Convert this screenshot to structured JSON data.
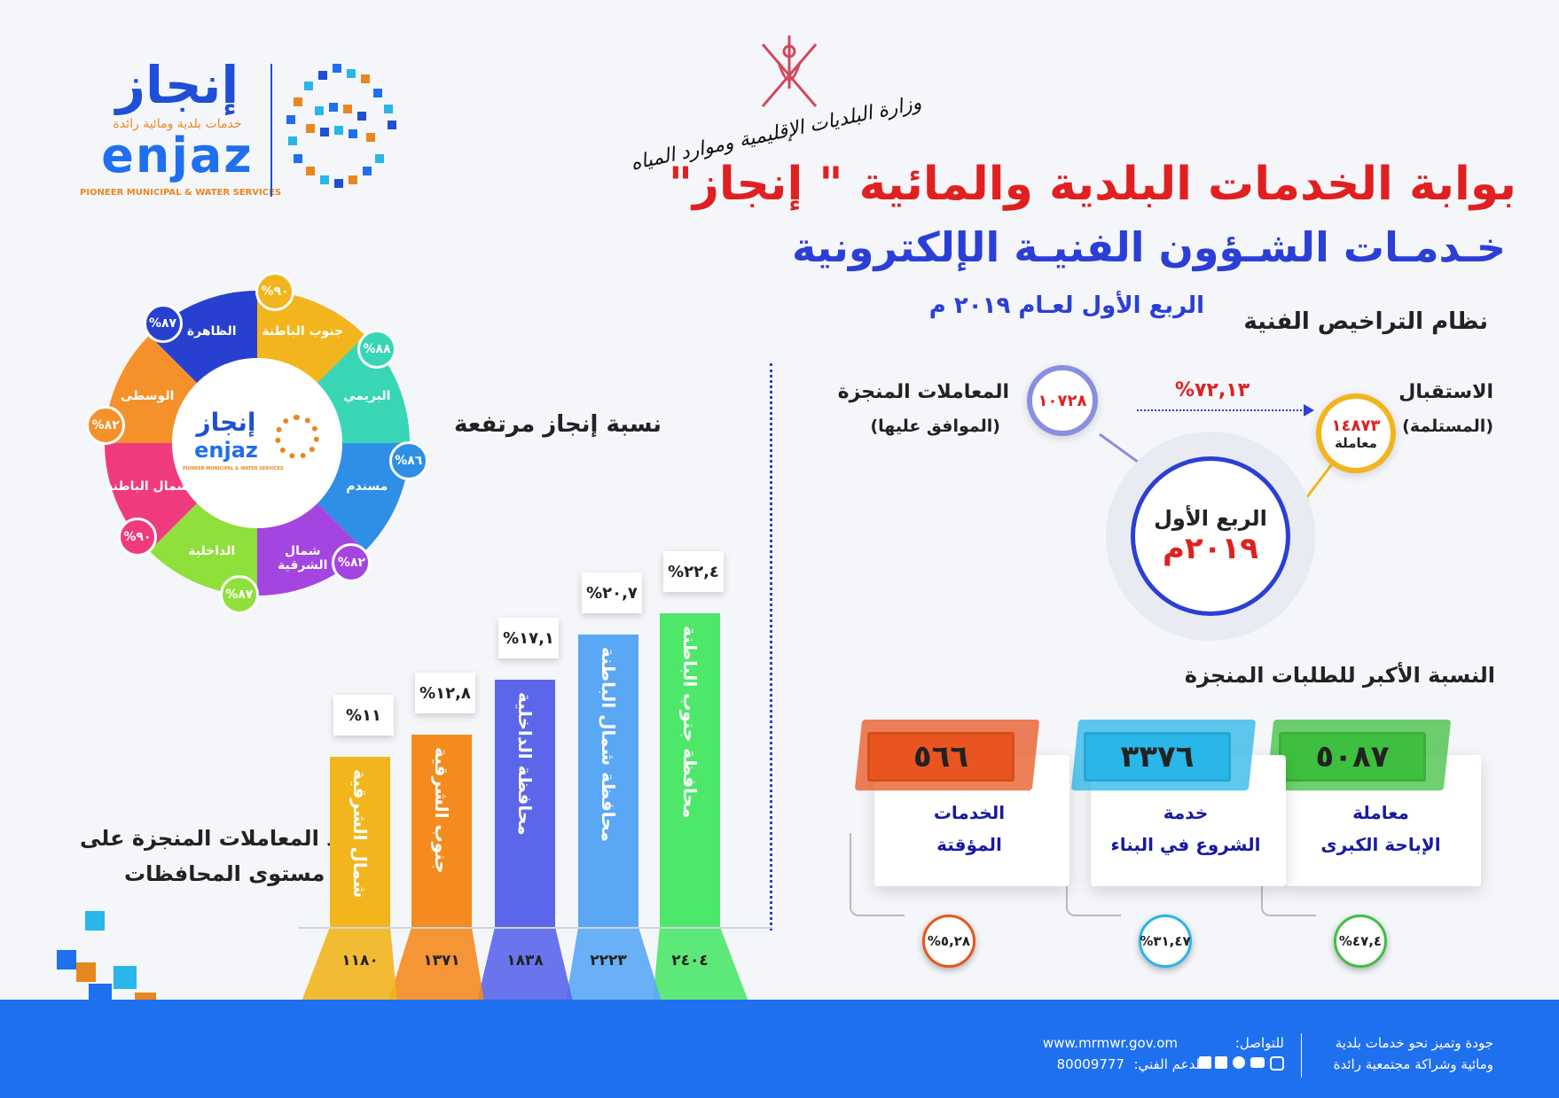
{
  "header": {
    "title": "بوابة الخدمات البلدية والمائية \" إنجاز\"",
    "subtitle": "خـدمـات الشـؤون الفنيـة الإلكترونية",
    "quarter": "الربع الأول لعـام ٢٠١٩ م",
    "ministry": "وزارة البلديات الإقليمية وموارد المياه"
  },
  "logo": {
    "arabic": "إنجاز",
    "tagline_ar": "خدمات بلدية ومائية رائدة",
    "latin": "enjaz",
    "tagline_en": "PIONEER MUNICIPAL & WATER SERVICES"
  },
  "licenses": {
    "title": "نظام التراخيص الفنية",
    "received_label": "الاستقبال",
    "received_sub": "(المستلمة)",
    "received_value": "١٤٨٧٣",
    "received_unit": "معاملة",
    "completed_label": "المعاملات المنجزة",
    "completed_sub": "(الموافق عليها)",
    "completed_value": "١٠٧٢٨",
    "ratio": "%٧٢,١٣",
    "center_line1": "الربع الأول",
    "center_line2": "٢٠١٩م"
  },
  "top_requests": {
    "title": "النسبة الأكبر للطلبات المنجزة",
    "cards": [
      {
        "value": "٥٠٨٧",
        "line1": "معاملة",
        "line2": "الإباحة الكبرى",
        "pct": "%٤٧,٤",
        "color": "#3fbf3f"
      },
      {
        "value": "٣٣٧٦",
        "line1": "خدمة",
        "line2": "الشروع في البناء",
        "pct": "%٣١,٤٧",
        "color": "#29b6e8"
      },
      {
        "value": "٥٦٦",
        "line1": "الخدمات",
        "line2": "المؤقتة",
        "pct": "%٥,٢٨",
        "color": "#e8551f"
      }
    ]
  },
  "donut": {
    "title": "نسبة إنجاز مرتفعة",
    "segments": [
      {
        "name": "جنوب الباطنة",
        "pct": "%٩٠",
        "color": "#f2b51d"
      },
      {
        "name": "البريمي",
        "pct": "%٨٨",
        "color": "#38d6b4"
      },
      {
        "name": "مسندم",
        "pct": "%٨٦",
        "color": "#2f8fe6"
      },
      {
        "name": "شمال الشرقية",
        "pct": "%٨٢",
        "color": "#a445e0"
      },
      {
        "name": "الداخلية",
        "pct": "%٨٧",
        "color": "#8fe03a"
      },
      {
        "name": "شمال الباطنة",
        "pct": "%٩٠",
        "color": "#f03a7e"
      },
      {
        "name": "الوسطى",
        "pct": "%٨٢",
        "color": "#f5912b"
      },
      {
        "name": "الظاهرة",
        "pct": "%٨٧",
        "color": "#2740d0"
      }
    ]
  },
  "bars": {
    "title_line1": "عدد المعاملات المنجزة على",
    "title_line2": "مستوى المحافظات",
    "items": [
      {
        "name": "محافظة جنوب الباطنة",
        "pct": "%٢٢,٤",
        "count": "٢٤٠٤",
        "value": 2404,
        "color": "#4de86a"
      },
      {
        "name": "محافظة شمال الباطنة",
        "pct": "%٢٠,٧",
        "count": "٢٢٢٣",
        "value": 2223,
        "color": "#5aa8f5"
      },
      {
        "name": "محافظة الداخلية",
        "pct": "%١٧,١",
        "count": "١٨٣٨",
        "value": 1838,
        "color": "#5b66ea"
      },
      {
        "name": "جنوب الشرقية",
        "pct": "%١٢,٨",
        "count": "١٣٧١",
        "value": 1371,
        "color": "#f58b1f"
      },
      {
        "name": "شمال الشرقية",
        "pct": "%١١",
        "count": "١١٨٠",
        "value": 1180,
        "color": "#f2b51d"
      }
    ]
  },
  "footer": {
    "slogan1": "جودة وتميز نحو خدمات بلدية",
    "slogan2": "ومائية وشراكة مجتمعية رائدة",
    "contact_label": "للتواصل:",
    "website": "www.mrmwr.gov.om",
    "support_label": "للدعم الفني:",
    "phone": "80009777"
  }
}
